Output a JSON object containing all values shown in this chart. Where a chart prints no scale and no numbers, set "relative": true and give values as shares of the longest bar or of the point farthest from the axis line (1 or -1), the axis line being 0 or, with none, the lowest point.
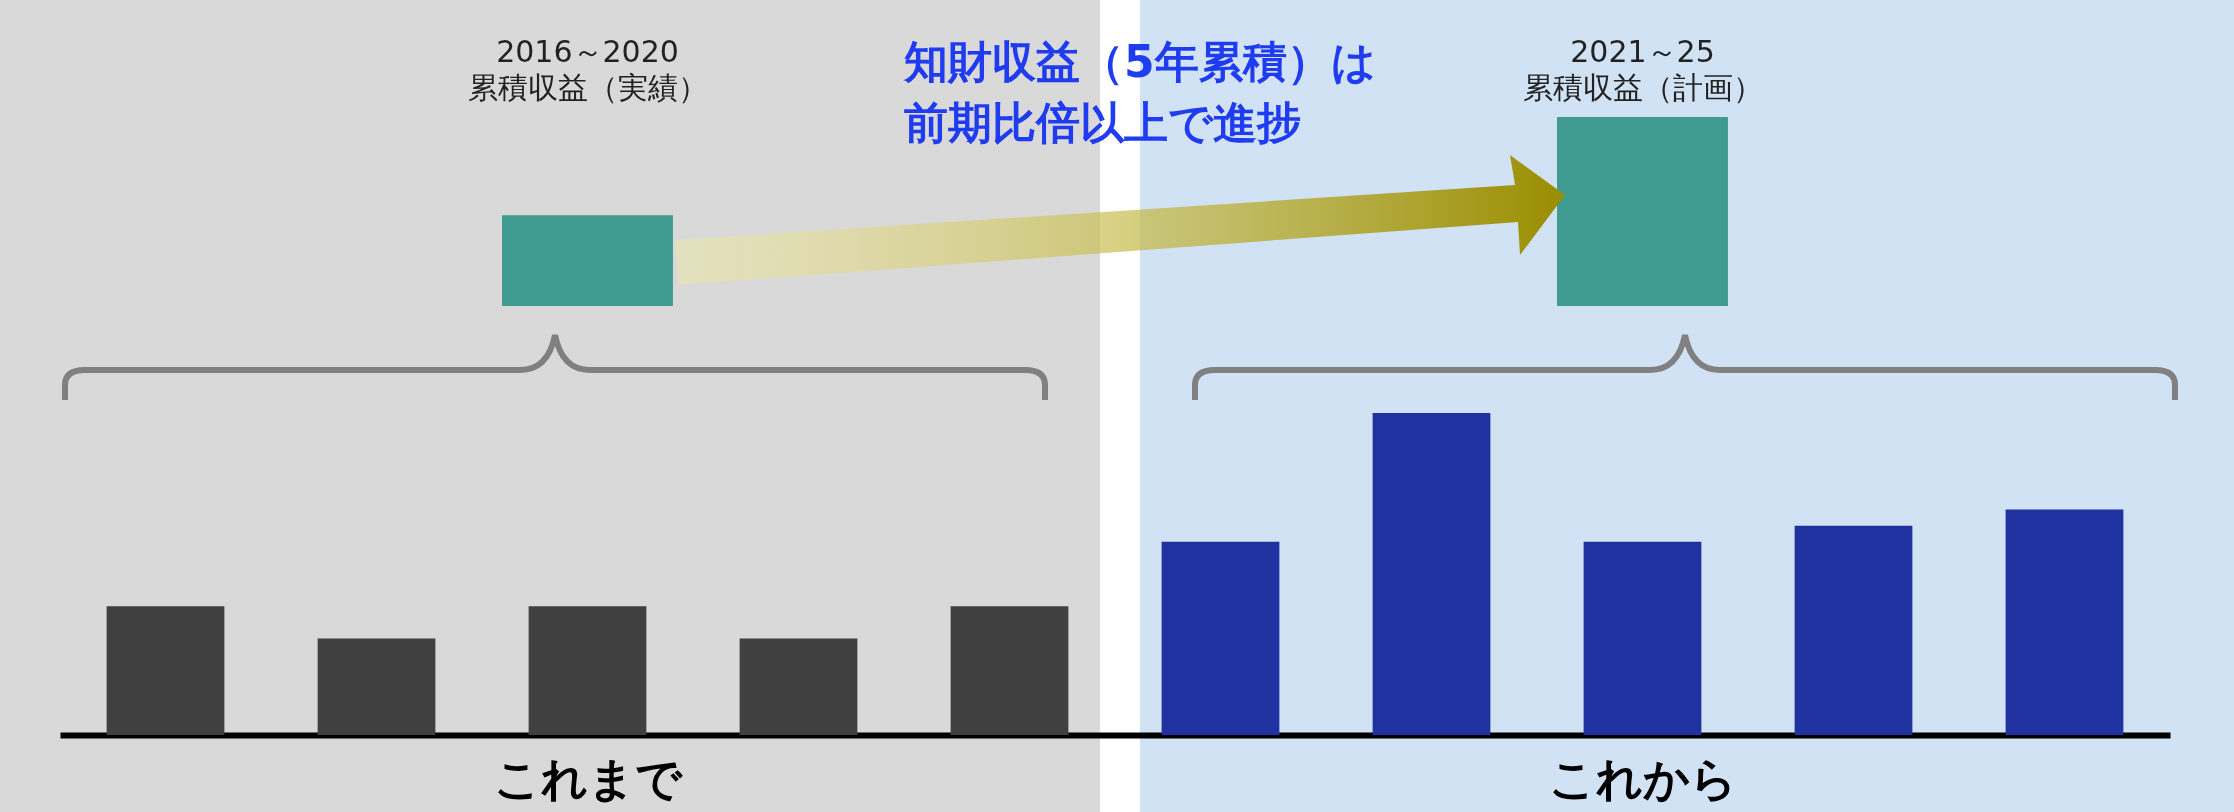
{
  "chart_data": [
    {
      "type": "bar",
      "relative": true,
      "categories": [
        "2016～2020\n累積収益（実績）",
        "2021～25\n累積収益（計画）"
      ],
      "values": [
        0.48,
        1
      ],
      "colors": [
        "#3f9b8f",
        "#3f9b8f"
      ],
      "annotations": [
        "知財収益（5年累積）は前期比倍以上で進捗"
      ]
    },
    {
      "type": "bar",
      "relative": true,
      "categories": [
        null,
        null,
        null,
        null,
        null,
        null,
        null,
        null,
        null,
        null
      ],
      "values": [
        0.4,
        0.3,
        0.4,
        0.3,
        0.4,
        0.6,
        1,
        0.6,
        0.65,
        0.7
      ],
      "colors": [
        "#404040",
        "#404040",
        "#404040",
        "#404040",
        "#404040",
        "#1f32a0",
        "#1f32a0",
        "#1f32a0",
        "#1f32a0",
        "#1f32a0"
      ],
      "annotations": [
        "これまで",
        "これから"
      ]
    }
  ]
}
